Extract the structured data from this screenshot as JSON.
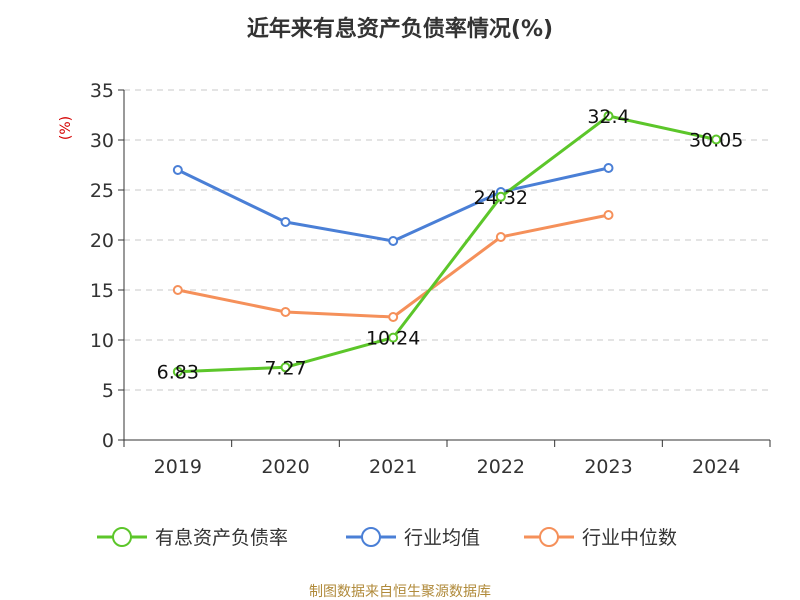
{
  "chart_data": {
    "type": "line",
    "title": "近年来有息资产负债率情况(%)",
    "ylabel": "(%)",
    "xlabel": "",
    "categories": [
      "2019",
      "2020",
      "2021",
      "2022",
      "2023",
      "2024"
    ],
    "ylim": [
      0,
      35
    ],
    "yticks": [
      0,
      5,
      10,
      15,
      20,
      25,
      30,
      35
    ],
    "grid": true,
    "legend_position": "bottom",
    "series": [
      {
        "name": "有息资产负债率",
        "color": "#5cc62a",
        "values": [
          6.83,
          7.27,
          10.24,
          24.32,
          32.4,
          30.05
        ],
        "labels": [
          "6.83",
          "7.27",
          "10.24",
          "24.32",
          "32.4",
          "30.05"
        ]
      },
      {
        "name": "行业均值",
        "color": "#4a7fd6",
        "values": [
          27.0,
          21.8,
          19.9,
          24.8,
          27.2,
          null
        ]
      },
      {
        "name": "行业中位数",
        "color": "#f5905a",
        "values": [
          15.0,
          12.8,
          12.3,
          20.3,
          22.5,
          null
        ]
      }
    ],
    "source": "制图数据来自恒生聚源数据库"
  }
}
